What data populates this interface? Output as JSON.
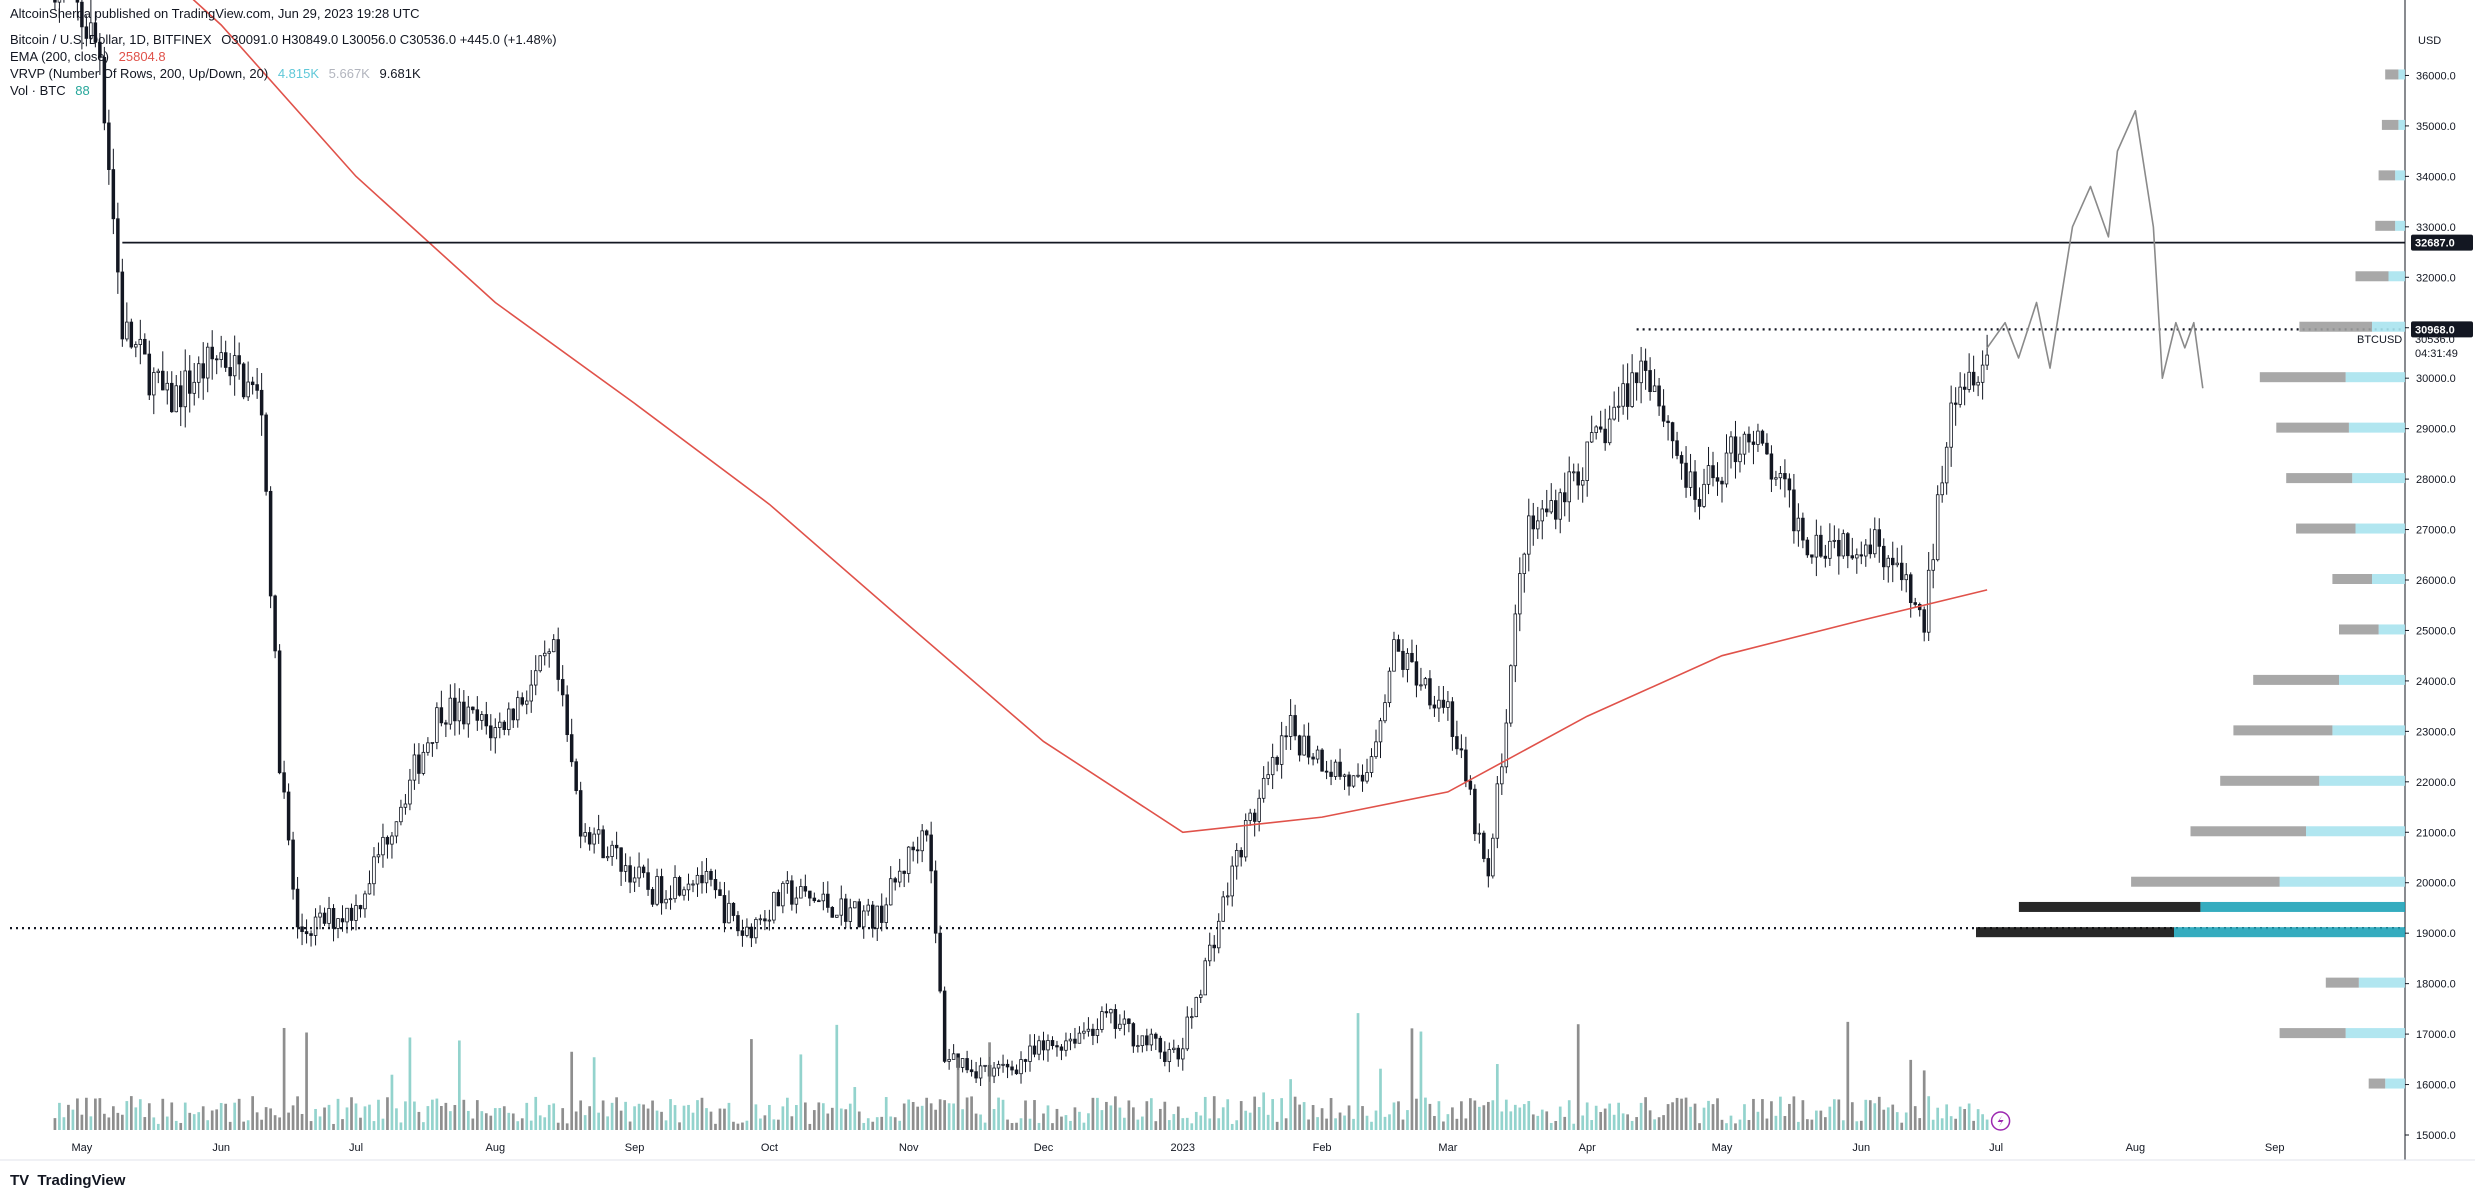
{
  "header": {
    "publisher_line": "AltcoinSherpa published on TradingView.com, Jun 29, 2023 19:28 UTC",
    "symbol_line": "Bitcoin / U.S. Dollar, 1D, BITFINEX",
    "ohlc": "O30091.0  H30849.0  L30056.0  C30536.0  +445.0 (+1.48%)",
    "ema_label": "EMA (200, close)",
    "ema_value": "25804.8",
    "vrvp_label": "VRVP (Number Of Rows, 200, Up/Down, 20)",
    "vrvp_v1": "4.815K",
    "vrvp_v2": "5.667K",
    "vrvp_v3": "9.681K",
    "vol_label": "Vol · BTC",
    "vol_value": "88"
  },
  "footer": {
    "brand": "TradingView",
    "logo": "TV"
  },
  "axis": {
    "currency": "USD",
    "y_ticks": [
      "36000.0",
      "35000.0",
      "34000.0",
      "33000.0",
      "32000.0",
      "31000.0",
      "30000.0",
      "29000.0",
      "28000.0",
      "27000.0",
      "26000.0",
      "25000.0",
      "24000.0",
      "23000.0",
      "22000.0",
      "21000.0",
      "20000.0",
      "19000.0",
      "18000.0",
      "17000.0",
      "16000.0",
      "15000.0"
    ],
    "x_labels": [
      "May",
      "Jun",
      "Jul",
      "Aug",
      "Sep",
      "Oct",
      "Nov",
      "Dec",
      "2023",
      "Feb",
      "Mar",
      "Apr",
      "May",
      "Jun",
      "Jul",
      "Aug",
      "Sep"
    ]
  },
  "badges": {
    "resistance_top": "32687.0",
    "resistance_mid": "30968.0",
    "ticker": "BTCUSD",
    "last_price": "30536.0",
    "countdown": "04:31:49"
  },
  "colors": {
    "up": "#131722",
    "down": "#131722",
    "ema": "#e0524a",
    "volume_up": "#80cbc4",
    "volume_down": "#7a7a7a",
    "vrvp_up": "#a9e3ee",
    "vrvp_down": "#9e9e9e",
    "vrvp_poc_dark": "#111111",
    "vrvp_poc_teal": "#1fa3b8",
    "projection": "#8a8a8a"
  },
  "chart_data": {
    "type": "candlestick",
    "symbol": "BTCUSD",
    "timeframe": "1D",
    "y_range": [
      15000,
      37000
    ],
    "x_range": [
      "2022-04-15",
      "2023-09-30"
    ],
    "monthly_path": [
      {
        "date": "2022-04-25",
        "price": 38000
      },
      {
        "date": "2022-05-05",
        "price": 36500
      },
      {
        "date": "2022-05-10",
        "price": 31000
      },
      {
        "date": "2022-05-20",
        "price": 29500
      },
      {
        "date": "2022-06-01",
        "price": 30500
      },
      {
        "date": "2022-06-10",
        "price": 29500
      },
      {
        "date": "2022-06-14",
        "price": 22500
      },
      {
        "date": "2022-06-18",
        "price": 19000
      },
      {
        "date": "2022-07-01",
        "price": 19500
      },
      {
        "date": "2022-07-20",
        "price": 23500
      },
      {
        "date": "2022-08-01",
        "price": 23000
      },
      {
        "date": "2022-08-14",
        "price": 24500
      },
      {
        "date": "2022-08-20",
        "price": 21200
      },
      {
        "date": "2022-09-05",
        "price": 19800
      },
      {
        "date": "2022-09-15",
        "price": 20200
      },
      {
        "date": "2022-09-25",
        "price": 19000
      },
      {
        "date": "2022-10-05",
        "price": 19800
      },
      {
        "date": "2022-10-25",
        "price": 19300
      },
      {
        "date": "2022-11-05",
        "price": 21200
      },
      {
        "date": "2022-11-09",
        "price": 16600
      },
      {
        "date": "2022-11-20",
        "price": 16200
      },
      {
        "date": "2022-12-15",
        "price": 17300
      },
      {
        "date": "2022-12-31",
        "price": 16500
      },
      {
        "date": "2023-01-14",
        "price": 20800
      },
      {
        "date": "2023-01-25",
        "price": 23000
      },
      {
        "date": "2023-02-10",
        "price": 21800
      },
      {
        "date": "2023-02-17",
        "price": 24600
      },
      {
        "date": "2023-03-01",
        "price": 23500
      },
      {
        "date": "2023-03-10",
        "price": 20000
      },
      {
        "date": "2023-03-18",
        "price": 26800
      },
      {
        "date": "2023-04-01",
        "price": 28400
      },
      {
        "date": "2023-04-14",
        "price": 30400
      },
      {
        "date": "2023-04-25",
        "price": 27500
      },
      {
        "date": "2023-05-07",
        "price": 29000
      },
      {
        "date": "2023-05-20",
        "price": 26800
      },
      {
        "date": "2023-06-05",
        "price": 26800
      },
      {
        "date": "2023-06-15",
        "price": 25100
      },
      {
        "date": "2023-06-21",
        "price": 29800
      },
      {
        "date": "2023-06-29",
        "price": 30536
      }
    ],
    "ema200": [
      {
        "date": "2022-04-25",
        "price": 40000
      },
      {
        "date": "2022-06-01",
        "price": 37000
      },
      {
        "date": "2022-07-01",
        "price": 34000
      },
      {
        "date": "2022-08-01",
        "price": 31500
      },
      {
        "date": "2022-09-01",
        "price": 29500
      },
      {
        "date": "2022-10-01",
        "price": 27500
      },
      {
        "date": "2022-11-01",
        "price": 25100
      },
      {
        "date": "2022-12-01",
        "price": 22800
      },
      {
        "date": "2023-01-01",
        "price": 21000
      },
      {
        "date": "2023-02-01",
        "price": 21300
      },
      {
        "date": "2023-03-01",
        "price": 21800
      },
      {
        "date": "2023-04-01",
        "price": 23300
      },
      {
        "date": "2023-05-01",
        "price": 24500
      },
      {
        "date": "2023-06-01",
        "price": 25200
      },
      {
        "date": "2023-06-29",
        "price": 25804.8
      }
    ],
    "horizontal_levels": [
      {
        "price": 32687.0,
        "style": "solid",
        "from": "2022-05-10"
      },
      {
        "price": 30968.0,
        "style": "dotted",
        "from": "2023-04-12"
      },
      {
        "price": 19100,
        "style": "dotted",
        "from": "2022-04-15"
      }
    ],
    "projection": [
      {
        "date": "2023-06-29",
        "price": 30600
      },
      {
        "date": "2023-07-03",
        "price": 31100
      },
      {
        "date": "2023-07-06",
        "price": 30400
      },
      {
        "date": "2023-07-10",
        "price": 31500
      },
      {
        "date": "2023-07-13",
        "price": 30200
      },
      {
        "date": "2023-07-18",
        "price": 33000
      },
      {
        "date": "2023-07-22",
        "price": 33800
      },
      {
        "date": "2023-07-26",
        "price": 32800
      },
      {
        "date": "2023-07-28",
        "price": 34500
      },
      {
        "date": "2023-08-01",
        "price": 35300
      },
      {
        "date": "2023-08-05",
        "price": 33000
      },
      {
        "date": "2023-08-07",
        "price": 30000
      },
      {
        "date": "2023-08-10",
        "price": 31100
      },
      {
        "date": "2023-08-12",
        "price": 30600
      },
      {
        "date": "2023-08-14",
        "price": 31100
      },
      {
        "date": "2023-08-16",
        "price": 29800
      }
    ],
    "volume_profile": {
      "note": "approximate horizontal volume bins, relative size 0-1",
      "bins": [
        {
          "price": 36000,
          "up": 0.02,
          "down": 0.04
        },
        {
          "price": 35000,
          "up": 0.02,
          "down": 0.05
        },
        {
          "price": 34000,
          "up": 0.03,
          "down": 0.05
        },
        {
          "price": 33000,
          "up": 0.03,
          "down": 0.06
        },
        {
          "price": 32000,
          "up": 0.05,
          "down": 0.1
        },
        {
          "price": 31000,
          "up": 0.1,
          "down": 0.22
        },
        {
          "price": 30000,
          "up": 0.18,
          "down": 0.26
        },
        {
          "price": 29000,
          "up": 0.17,
          "down": 0.22
        },
        {
          "price": 28000,
          "up": 0.16,
          "down": 0.2
        },
        {
          "price": 27000,
          "up": 0.15,
          "down": 0.18
        },
        {
          "price": 26000,
          "up": 0.1,
          "down": 0.12
        },
        {
          "price": 25000,
          "up": 0.08,
          "down": 0.12
        },
        {
          "price": 24000,
          "up": 0.2,
          "down": 0.26
        },
        {
          "price": 23000,
          "up": 0.22,
          "down": 0.3
        },
        {
          "price": 22000,
          "up": 0.26,
          "down": 0.3
        },
        {
          "price": 21000,
          "up": 0.3,
          "down": 0.35
        },
        {
          "price": 20000,
          "up": 0.38,
          "down": 0.45
        },
        {
          "price": 19500,
          "up": 0.62,
          "down": 0.55
        },
        {
          "price": 19000,
          "up": 0.7,
          "down": 0.6
        },
        {
          "price": 18000,
          "up": 0.14,
          "down": 0.1
        },
        {
          "price": 17000,
          "up": 0.18,
          "down": 0.2
        },
        {
          "price": 16000,
          "up": 0.06,
          "down": 0.05
        }
      ]
    }
  }
}
